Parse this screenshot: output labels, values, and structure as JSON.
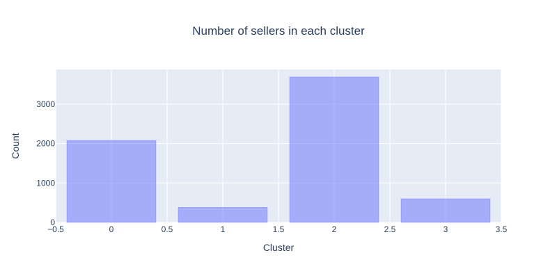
{
  "chart_data": {
    "type": "bar",
    "title": "Number of sellers in each cluster",
    "xlabel": "Cluster",
    "ylabel": "Count",
    "categories": [
      0,
      1,
      2,
      3
    ],
    "values": [
      2080,
      380,
      3690,
      600
    ],
    "bar_width": 0.8,
    "xlim": [
      -0.5,
      3.5
    ],
    "ylim": [
      0,
      3880
    ],
    "x_ticks": [
      -0.5,
      0,
      0.5,
      1,
      1.5,
      2,
      2.5,
      3,
      3.5
    ],
    "x_tick_labels": [
      "−0.5",
      "0",
      "0.5",
      "1",
      "1.5",
      "2",
      "2.5",
      "3",
      "3.5"
    ],
    "y_ticks": [
      0,
      1000,
      2000,
      3000
    ],
    "y_tick_labels": [
      "0",
      "1000",
      "2000",
      "3000"
    ],
    "grid": true,
    "legend": "none",
    "colors": {
      "bar_fill": "#636efa",
      "plot_background": "#e5ecf6",
      "grid": "#ffffff",
      "text": "#2a3f5f"
    }
  }
}
